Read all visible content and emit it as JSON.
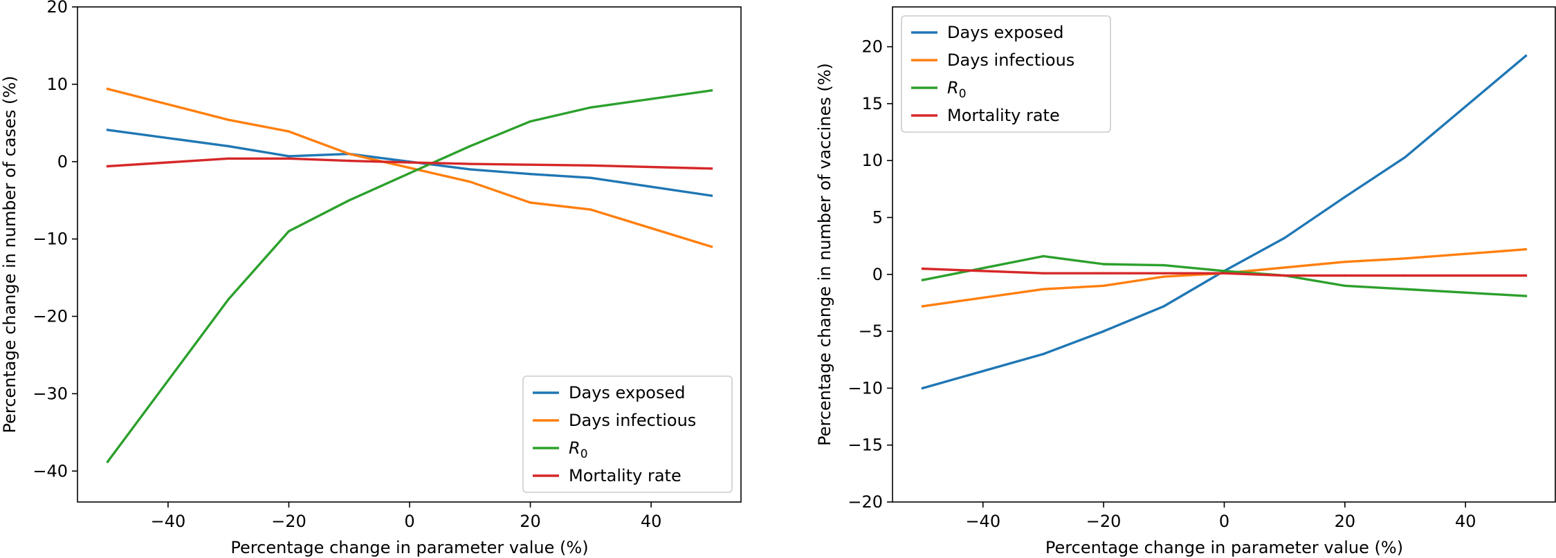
{
  "chart_data": [
    {
      "type": "line",
      "xlabel": "Percentage change in parameter value (%)",
      "ylabel": "Percentage change in number of cases (%)",
      "xlim": [
        -55,
        55
      ],
      "ylim": [
        -44,
        20
      ],
      "xticks": [
        -40,
        -20,
        0,
        20,
        40
      ],
      "yticks": [
        -40,
        -30,
        -20,
        -10,
        0,
        10,
        20
      ],
      "x": [
        -50,
        -30,
        -20,
        -10,
        0,
        10,
        20,
        30,
        50
      ],
      "legend_position": "lower-right",
      "series": [
        {
          "name": "Days exposed",
          "color": "#1f77b4",
          "values": [
            4.1,
            2.0,
            0.7,
            1.0,
            0.0,
            -1.0,
            -1.6,
            -2.1,
            -4.4
          ]
        },
        {
          "name": "Days infectious",
          "color": "#ff7f0e",
          "values": [
            9.4,
            5.4,
            3.9,
            1.0,
            -0.8,
            -2.6,
            -5.3,
            -6.2,
            -11.0
          ]
        },
        {
          "name": "R0",
          "color": "#2ca02c",
          "values": [
            -38.8,
            -17.8,
            -9.0,
            -5.0,
            -1.5,
            2.0,
            5.2,
            7.0,
            9.2
          ]
        },
        {
          "name": "Mortality rate",
          "color": "#d62728",
          "values": [
            -0.6,
            0.4,
            0.4,
            0.1,
            -0.1,
            -0.3,
            -0.4,
            -0.5,
            -0.9
          ]
        }
      ]
    },
    {
      "type": "line",
      "xlabel": "Percentage change in parameter value (%)",
      "ylabel": "Percentage change in number of vaccines (%)",
      "xlim": [
        -55,
        55
      ],
      "ylim": [
        -20,
        23.5
      ],
      "xticks": [
        -40,
        -20,
        0,
        20,
        40
      ],
      "yticks": [
        -20,
        -15,
        -10,
        -5,
        0,
        5,
        10,
        15,
        20
      ],
      "x": [
        -50,
        -30,
        -20,
        -10,
        0,
        10,
        20,
        30,
        50
      ],
      "legend_position": "upper-left",
      "series": [
        {
          "name": "Days exposed",
          "color": "#1f77b4",
          "values": [
            -10.0,
            -7.0,
            -5.0,
            -2.8,
            0.3,
            3.2,
            6.8,
            10.3,
            19.2
          ]
        },
        {
          "name": "Days infectious",
          "color": "#ff7f0e",
          "values": [
            -2.8,
            -1.3,
            -1.0,
            -0.2,
            0.1,
            0.6,
            1.1,
            1.4,
            2.2
          ]
        },
        {
          "name": "R0",
          "color": "#2ca02c",
          "values": [
            -0.5,
            1.6,
            0.9,
            0.8,
            0.3,
            -0.1,
            -1.0,
            -1.3,
            -1.9
          ]
        },
        {
          "name": "Mortality rate",
          "color": "#d62728",
          "values": [
            0.5,
            0.1,
            0.1,
            0.1,
            0.1,
            -0.1,
            -0.1,
            -0.1,
            -0.1
          ]
        }
      ]
    }
  ]
}
